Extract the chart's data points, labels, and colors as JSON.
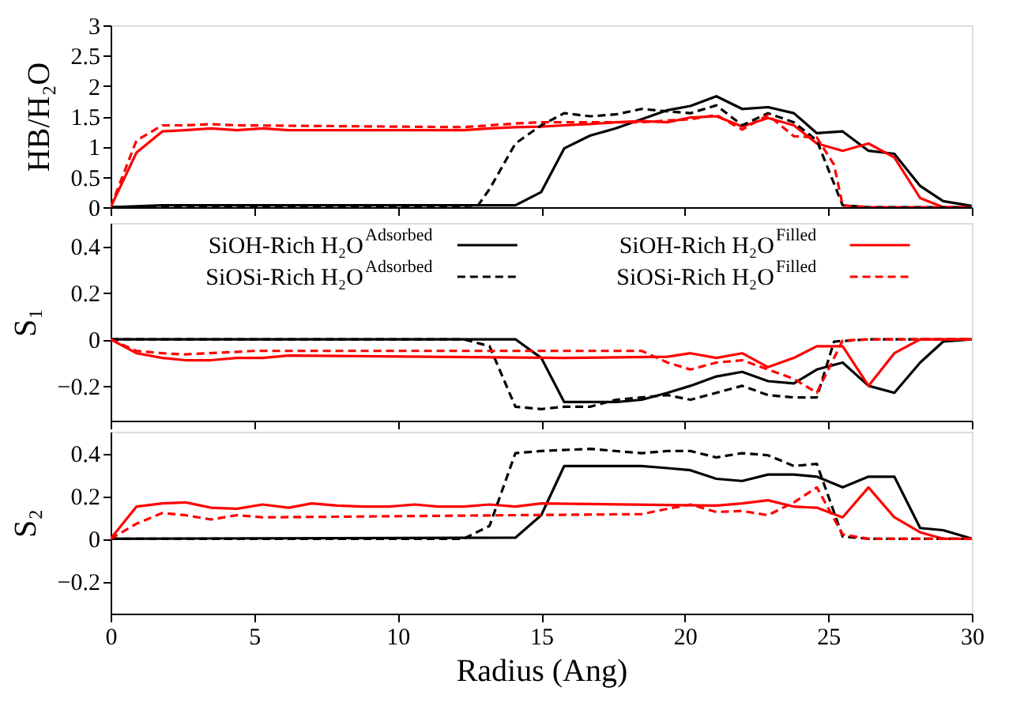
{
  "chart_data": [
    {
      "type": "line",
      "ylabel": "HB/H₂O",
      "xlim": [
        0,
        30
      ],
      "xticks": [
        0,
        5,
        10,
        15,
        20,
        25,
        30
      ],
      "ylim": [
        0,
        3
      ],
      "yticks": [
        0,
        0.5,
        1,
        1.5,
        2,
        2.5,
        3
      ],
      "grid": false,
      "legend": false,
      "marker": "none",
      "tick_labels": "y",
      "series": [
        {
          "color": "#000000",
          "line_style": "solid",
          "x": [
            0,
            1.8,
            14.1,
            15.0,
            15.8,
            16.7,
            17.6,
            18.5,
            19.4,
            20.2,
            21.1,
            22.0,
            22.9,
            23.8,
            24.6,
            25.5,
            26.4,
            27.3,
            28.2,
            29.0,
            30
          ],
          "values": [
            0,
            0.03,
            0.03,
            0.25,
            0.97,
            1.18,
            1.3,
            1.45,
            1.6,
            1.67,
            1.83,
            1.62,
            1.65,
            1.55,
            1.22,
            1.25,
            0.93,
            0.88,
            0.35,
            0.1,
            0.02
          ]
        },
        {
          "color": "#ff0000",
          "line_style": "solid",
          "x": [
            0,
            0.9,
            1.8,
            2.6,
            3.5,
            4.4,
            5.3,
            6.2,
            12.3,
            13.2,
            14.1,
            15.0,
            15.8,
            16.7,
            17.6,
            18.5,
            19.4,
            20.2,
            21.1,
            22.0,
            22.9,
            23.8,
            24.6,
            25.5,
            26.4,
            27.3,
            28.2,
            29.0,
            30
          ],
          "values": [
            0,
            0.9,
            1.25,
            1.27,
            1.3,
            1.27,
            1.3,
            1.27,
            1.27,
            1.3,
            1.32,
            1.33,
            1.35,
            1.37,
            1.4,
            1.42,
            1.4,
            1.48,
            1.5,
            1.33,
            1.47,
            1.35,
            1.05,
            0.93,
            1.05,
            0.82,
            0.15,
            0,
            0
          ]
        },
        {
          "color": "#000000",
          "line_style": "dashed",
          "x": [
            0,
            12.3,
            12.8,
            13.2,
            14.1,
            15.0,
            15.8,
            16.7,
            17.6,
            18.5,
            19.4,
            20.2,
            21.1,
            22.0,
            22.9,
            23.8,
            24.6,
            25.5,
            26.4,
            30
          ],
          "values": [
            0,
            0.02,
            0.03,
            0.3,
            1.05,
            1.35,
            1.55,
            1.5,
            1.53,
            1.62,
            1.58,
            1.55,
            1.68,
            1.35,
            1.55,
            1.4,
            1.1,
            0.03,
            0,
            0
          ]
        },
        {
          "color": "#ff0000",
          "line_style": "dashed",
          "x": [
            0,
            0.9,
            1.8,
            2.6,
            3.5,
            4.4,
            12.3,
            13.2,
            14.1,
            15.0,
            18.5,
            19.4,
            20.2,
            21.1,
            22.0,
            22.9,
            23.8,
            24.6,
            25.2,
            25.5,
            26.4,
            30
          ],
          "values": [
            0,
            1.1,
            1.35,
            1.35,
            1.37,
            1.35,
            1.32,
            1.35,
            1.38,
            1.4,
            1.4,
            1.43,
            1.45,
            1.52,
            1.28,
            1.52,
            1.17,
            1.15,
            0.7,
            0.03,
            0,
            0
          ]
        }
      ]
    },
    {
      "type": "line",
      "ylabel": "S₁",
      "xlim": [
        0,
        30
      ],
      "xticks": [
        0,
        5,
        10,
        15,
        20,
        25,
        30
      ],
      "ylim": [
        -0.35,
        0.5
      ],
      "yticks": [
        -0.2,
        0,
        0.2,
        0.4
      ],
      "grid": false,
      "legend": "top",
      "marker": "none",
      "tick_labels": "y",
      "series": [
        {
          "name": "SiOH-Rich H₂O$^{Adsorbed}$",
          "color": "#000000",
          "line_style": "solid",
          "x": [
            0,
            14.1,
            15.0,
            15.8,
            16.7,
            17.6,
            18.5,
            19.4,
            20.2,
            21.1,
            22.0,
            22.9,
            23.8,
            24.6,
            25.5,
            26.4,
            27.3,
            28.2,
            29.0,
            30
          ],
          "values": [
            0,
            0,
            -0.08,
            -0.27,
            -0.27,
            -0.27,
            -0.26,
            -0.23,
            -0.2,
            -0.16,
            -0.14,
            -0.18,
            -0.19,
            -0.13,
            -0.1,
            -0.2,
            -0.23,
            -0.1,
            -0.01,
            0
          ]
        },
        {
          "name": "SiOSi-Rich H₂O$^{Adsorbed}$",
          "color": "#000000",
          "line_style": "dashed",
          "x": [
            0,
            12.3,
            13.2,
            14.1,
            15.0,
            15.8,
            16.7,
            17.6,
            18.5,
            19.4,
            20.2,
            21.1,
            22.0,
            22.9,
            23.8,
            24.6,
            25.2,
            26.4,
            30
          ],
          "values": [
            0,
            0,
            -0.03,
            -0.29,
            -0.3,
            -0.29,
            -0.29,
            -0.26,
            -0.25,
            -0.24,
            -0.26,
            -0.23,
            -0.2,
            -0.24,
            -0.25,
            -0.25,
            -0.01,
            0,
            0
          ]
        },
        {
          "name": "SiOH-Rich H₂O$^{Filled}$",
          "color": "#ff0000",
          "line_style": "solid",
          "x": [
            0,
            0.9,
            1.8,
            2.6,
            3.5,
            4.4,
            5.3,
            6.2,
            15.8,
            19.4,
            20.2,
            21.1,
            22.0,
            22.9,
            23.8,
            24.6,
            25.5,
            26.4,
            27.3,
            28.2,
            30
          ],
          "values": [
            0,
            -0.06,
            -0.08,
            -0.09,
            -0.09,
            -0.08,
            -0.08,
            -0.07,
            -0.08,
            -0.075,
            -0.06,
            -0.08,
            -0.06,
            -0.12,
            -0.08,
            -0.03,
            -0.03,
            -0.2,
            -0.06,
            0,
            0
          ]
        },
        {
          "name": "SiOSi-Rich H₂O$^{Filled}$",
          "color": "#ff0000",
          "line_style": "dashed",
          "x": [
            0,
            0.9,
            1.8,
            2.6,
            5.0,
            18.5,
            19.4,
            20.2,
            21.1,
            22.0,
            22.9,
            23.8,
            24.6,
            25.5,
            26.4,
            30
          ],
          "values": [
            0,
            -0.05,
            -0.06,
            -0.065,
            -0.05,
            -0.05,
            -0.1,
            -0.13,
            -0.1,
            -0.09,
            -0.13,
            -0.17,
            -0.23,
            -0.005,
            0,
            0
          ]
        }
      ]
    },
    {
      "type": "line",
      "ylabel": "S₂",
      "xlabel": "Radius (Ang)",
      "xlim": [
        0,
        30
      ],
      "xticks": [
        0,
        5,
        10,
        15,
        20,
        25,
        30
      ],
      "ylim": [
        -0.35,
        0.5
      ],
      "yticks": [
        -0.2,
        0,
        0.2,
        0.4
      ],
      "grid": false,
      "legend": false,
      "marker": "none",
      "series": [
        {
          "color": "#000000",
          "line_style": "solid",
          "x": [
            0,
            14.1,
            15.0,
            15.8,
            18.5,
            19.4,
            20.2,
            21.1,
            22.0,
            22.9,
            23.8,
            24.6,
            25.5,
            26.4,
            27.3,
            28.2,
            29.0,
            30
          ],
          "values": [
            0,
            0.005,
            0.11,
            0.34,
            0.34,
            0.33,
            0.32,
            0.28,
            0.27,
            0.3,
            0.3,
            0.29,
            0.24,
            0.29,
            0.29,
            0.05,
            0.04,
            0
          ]
        },
        {
          "color": "#ff0000",
          "line_style": "solid",
          "x": [
            0,
            0.9,
            1.8,
            2.6,
            3.5,
            4.4,
            5.3,
            6.2,
            7.0,
            7.9,
            8.8,
            9.7,
            10.6,
            11.4,
            12.3,
            13.2,
            14.1,
            15.0,
            21.1,
            22.0,
            22.9,
            23.8,
            24.6,
            25.5,
            26.4,
            27.3,
            28.2,
            29.0,
            30
          ],
          "values": [
            0,
            0.15,
            0.165,
            0.17,
            0.145,
            0.14,
            0.16,
            0.145,
            0.165,
            0.155,
            0.15,
            0.15,
            0.16,
            0.15,
            0.15,
            0.16,
            0.15,
            0.165,
            0.155,
            0.165,
            0.18,
            0.15,
            0.145,
            0.1,
            0.24,
            0.1,
            0.03,
            0,
            0
          ]
        },
        {
          "color": "#000000",
          "line_style": "dashed",
          "x": [
            0,
            12.3,
            13.2,
            14.1,
            15.0,
            16.7,
            18.5,
            19.4,
            20.2,
            21.1,
            22.0,
            22.9,
            23.8,
            24.6,
            25.5,
            26.4,
            30
          ],
          "values": [
            0,
            0,
            0.06,
            0.4,
            0.41,
            0.42,
            0.4,
            0.41,
            0.41,
            0.38,
            0.4,
            0.39,
            0.34,
            0.35,
            0.01,
            0,
            0
          ]
        },
        {
          "color": "#ff0000",
          "line_style": "dashed",
          "x": [
            0,
            0.9,
            1.8,
            2.6,
            3.5,
            4.4,
            5.3,
            18.5,
            19.4,
            20.2,
            21.1,
            22.0,
            22.9,
            23.8,
            24.6,
            25.5,
            26.4,
            30
          ],
          "values": [
            0,
            0.07,
            0.12,
            0.11,
            0.09,
            0.11,
            0.1,
            0.115,
            0.14,
            0.16,
            0.125,
            0.13,
            0.11,
            0.17,
            0.24,
            0.02,
            0,
            0
          ]
        }
      ]
    }
  ]
}
